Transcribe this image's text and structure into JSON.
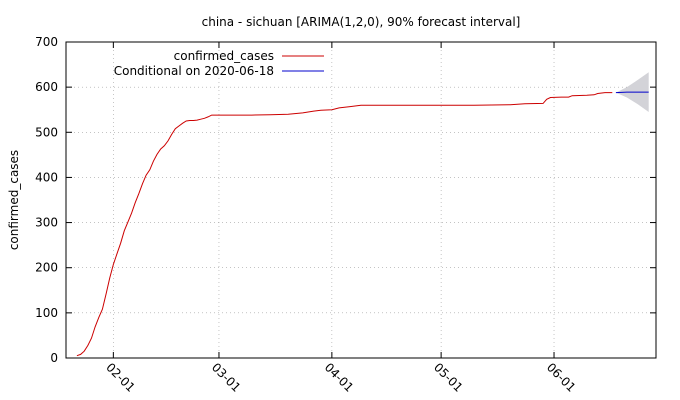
{
  "colors": {
    "actual": "#cc0000",
    "forecast": "#0000cc",
    "band": "#d3d3d8",
    "grid": "#a0a0a0",
    "axis": "#000000"
  },
  "chart_data": {
    "type": "line",
    "title": "china - sichuan [ARIMA(1,2,0), 90% forecast interval]",
    "ylabel": "confirmed_cases",
    "xlabel": "",
    "ylim": [
      0,
      700
    ],
    "yticks": [
      0,
      100,
      200,
      300,
      400,
      500,
      600,
      700
    ],
    "xlim": [
      "2020-01-19",
      "2020-06-29"
    ],
    "xticks": [
      {
        "date": "2020-02-01",
        "label": "02-01"
      },
      {
        "date": "2020-03-01",
        "label": "03-01"
      },
      {
        "date": "2020-04-01",
        "label": "04-01"
      },
      {
        "date": "2020-05-01",
        "label": "05-01"
      },
      {
        "date": "2020-06-01",
        "label": "06-01"
      }
    ],
    "grid": true,
    "legend_position": "top-left",
    "series": [
      {
        "name": "confirmed_cases",
        "color": "#cc0000",
        "points": [
          [
            "2020-01-22",
            5
          ],
          [
            "2020-01-23",
            8
          ],
          [
            "2020-01-24",
            15
          ],
          [
            "2020-01-25",
            28
          ],
          [
            "2020-01-26",
            44
          ],
          [
            "2020-01-27",
            69
          ],
          [
            "2020-01-28",
            90
          ],
          [
            "2020-01-29",
            108
          ],
          [
            "2020-01-30",
            142
          ],
          [
            "2020-01-31",
            177
          ],
          [
            "2020-02-01",
            207
          ],
          [
            "2020-02-02",
            231
          ],
          [
            "2020-02-03",
            254
          ],
          [
            "2020-02-04",
            282
          ],
          [
            "2020-02-05",
            301
          ],
          [
            "2020-02-06",
            321
          ],
          [
            "2020-02-07",
            344
          ],
          [
            "2020-02-08",
            364
          ],
          [
            "2020-02-09",
            386
          ],
          [
            "2020-02-10",
            405
          ],
          [
            "2020-02-11",
            417
          ],
          [
            "2020-02-12",
            436
          ],
          [
            "2020-02-13",
            451
          ],
          [
            "2020-02-14",
            463
          ],
          [
            "2020-02-15",
            470
          ],
          [
            "2020-02-16",
            481
          ],
          [
            "2020-02-17",
            495
          ],
          [
            "2020-02-18",
            508
          ],
          [
            "2020-02-19",
            514
          ],
          [
            "2020-02-20",
            520
          ],
          [
            "2020-02-21",
            525
          ],
          [
            "2020-02-22",
            526
          ],
          [
            "2020-02-23",
            526
          ],
          [
            "2020-02-24",
            527
          ],
          [
            "2020-02-25",
            529
          ],
          [
            "2020-02-26",
            531
          ],
          [
            "2020-02-27",
            534
          ],
          [
            "2020-02-28",
            538
          ],
          [
            "2020-03-01",
            538
          ],
          [
            "2020-03-10",
            538
          ],
          [
            "2020-03-15",
            539
          ],
          [
            "2020-03-20",
            540
          ],
          [
            "2020-03-24",
            543
          ],
          [
            "2020-03-27",
            547
          ],
          [
            "2020-03-29",
            549
          ],
          [
            "2020-04-01",
            550
          ],
          [
            "2020-04-03",
            554
          ],
          [
            "2020-04-06",
            557
          ],
          [
            "2020-04-09",
            560
          ],
          [
            "2020-04-20",
            560
          ],
          [
            "2020-05-01",
            560
          ],
          [
            "2020-05-10",
            560
          ],
          [
            "2020-05-20",
            561
          ],
          [
            "2020-05-22",
            562
          ],
          [
            "2020-05-24",
            563
          ],
          [
            "2020-05-29",
            564
          ],
          [
            "2020-05-30",
            573
          ],
          [
            "2020-05-31",
            577
          ],
          [
            "2020-06-03",
            578
          ],
          [
            "2020-06-05",
            578
          ],
          [
            "2020-06-06",
            581
          ],
          [
            "2020-06-10",
            582
          ],
          [
            "2020-06-12",
            583
          ],
          [
            "2020-06-13",
            586
          ],
          [
            "2020-06-15",
            588
          ],
          [
            "2020-06-17",
            588
          ]
        ]
      },
      {
        "name": "Conditional on 2020-06-18",
        "color": "#0000cc",
        "points": [
          [
            "2020-06-18",
            588
          ],
          [
            "2020-06-21",
            589
          ],
          [
            "2020-06-24",
            589
          ],
          [
            "2020-06-27",
            589
          ]
        ],
        "interval_90": [
          [
            "2020-06-18",
            588,
            588
          ],
          [
            "2020-06-21",
            577,
            600
          ],
          [
            "2020-06-24",
            562,
            616
          ],
          [
            "2020-06-27",
            545,
            633
          ]
        ]
      }
    ]
  }
}
